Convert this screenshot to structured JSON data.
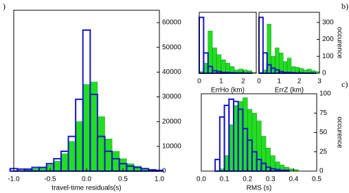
{
  "chart_data": [
    {
      "type": "histogram",
      "panel_label": ")",
      "xlabel": "travel-time residuals(s)",
      "bins": [
        -1.05,
        -0.95,
        -0.85,
        -0.75,
        -0.65,
        -0.55,
        -0.45,
        -0.35,
        -0.25,
        -0.15,
        -0.05,
        0.05,
        0.15,
        0.25,
        0.35,
        0.45,
        0.55,
        0.65,
        0.75,
        0.85,
        0.95,
        1.05
      ],
      "series": [
        {
          "color": "#22dd22",
          "values": [
            0,
            300,
            500,
            1000,
            1500,
            2500,
            4000,
            7000,
            12000,
            20000,
            35000,
            36000,
            22000,
            13000,
            8000,
            5000,
            3000,
            2000,
            1200,
            700,
            300
          ]
        },
        {
          "color": "#1515c8",
          "values": [
            1000,
            800,
            800,
            1500,
            1500,
            3000,
            5000,
            8000,
            14000,
            29000,
            57000,
            31000,
            14000,
            8000,
            5000,
            3000,
            2000,
            1500,
            1000,
            500,
            300
          ]
        }
      ],
      "xlim": [
        -1.0,
        1.0
      ],
      "xticks": [
        {
          "value": -1.0,
          "label": "-1.0"
        },
        -0.5,
        {
          "value": 0,
          "label": "0.0"
        },
        0.5,
        {
          "value": 1.0,
          "label": "1.0"
        }
      ],
      "ylim": [
        0,
        65000
      ],
      "yticks": [
        0,
        10000,
        20000,
        30000,
        40000,
        50000,
        60000
      ]
    },
    {
      "type": "histogram",
      "xlabel": "ErrHo (km)",
      "bins": [
        0,
        0.2,
        0.4,
        0.6,
        0.8,
        1.0,
        1.2,
        1.4,
        1.6,
        1.8,
        2.0,
        2.2,
        2.4,
        2.6
      ],
      "series": [
        {
          "color": "#22dd22",
          "values": [
            10,
            60,
            250,
            150,
            110,
            80,
            60,
            40,
            20,
            25,
            20,
            15,
            5
          ]
        },
        {
          "color": "#1515c8",
          "values": [
            330,
            120,
            40,
            15,
            10,
            5,
            5,
            3,
            2,
            2,
            1,
            1,
            0
          ]
        }
      ],
      "xlim": [
        0,
        2.6
      ],
      "xticks": [
        0,
        1,
        2
      ],
      "ylim": [
        0,
        360
      ]
    },
    {
      "type": "histogram",
      "panel_label": "b)",
      "xlabel": "ErrZ (km)",
      "ylabel": "occurence",
      "bins": [
        0,
        0.2,
        0.4,
        0.6,
        0.8,
        1.0,
        1.2,
        1.4,
        1.6,
        1.8,
        2.0,
        2.2,
        2.4,
        2.6,
        2.8,
        3.0
      ],
      "series": [
        {
          "color": "#22dd22",
          "values": [
            5,
            20,
            290,
            100,
            150,
            120,
            70,
            90,
            40,
            35,
            30,
            20,
            25,
            15,
            10
          ]
        },
        {
          "color": "#1515c8",
          "values": [
            330,
            120,
            50,
            30,
            20,
            10,
            5,
            5,
            3,
            2,
            2,
            1,
            1,
            1,
            0
          ]
        }
      ],
      "xlim": [
        0,
        3
      ],
      "xticks": [
        0,
        1,
        2,
        3
      ],
      "ylim": [
        0,
        360
      ],
      "yticks": [
        0,
        100,
        200,
        300
      ]
    },
    {
      "type": "histogram",
      "panel_label": "c)",
      "xlabel": "RMS (s)",
      "ylabel": "occurence",
      "bins": [
        0.06,
        0.08,
        0.1,
        0.12,
        0.14,
        0.16,
        0.18,
        0.2,
        0.22,
        0.24,
        0.26,
        0.28,
        0.3,
        0.32,
        0.34,
        0.36,
        0.38,
        0.4,
        0.42
      ],
      "series": [
        {
          "color": "#22dd22",
          "values": [
            0,
            3,
            20,
            60,
            85,
            90,
            95,
            80,
            75,
            65,
            45,
            30,
            20,
            12,
            8,
            5,
            3,
            2
          ]
        },
        {
          "color": "#1515c8",
          "values": [
            15,
            70,
            85,
            93,
            90,
            80,
            55,
            40,
            25,
            15,
            10,
            5,
            3,
            2,
            1,
            1,
            0,
            0
          ]
        }
      ],
      "xlim": [
        0,
        0.5
      ],
      "xticks": [
        {
          "value": 0,
          "label": "0.0"
        },
        0.1,
        0.2,
        0.3,
        0.4,
        0.5
      ],
      "ylim": [
        0,
        100
      ],
      "yticks": [
        0,
        25,
        50,
        75,
        100
      ]
    }
  ]
}
